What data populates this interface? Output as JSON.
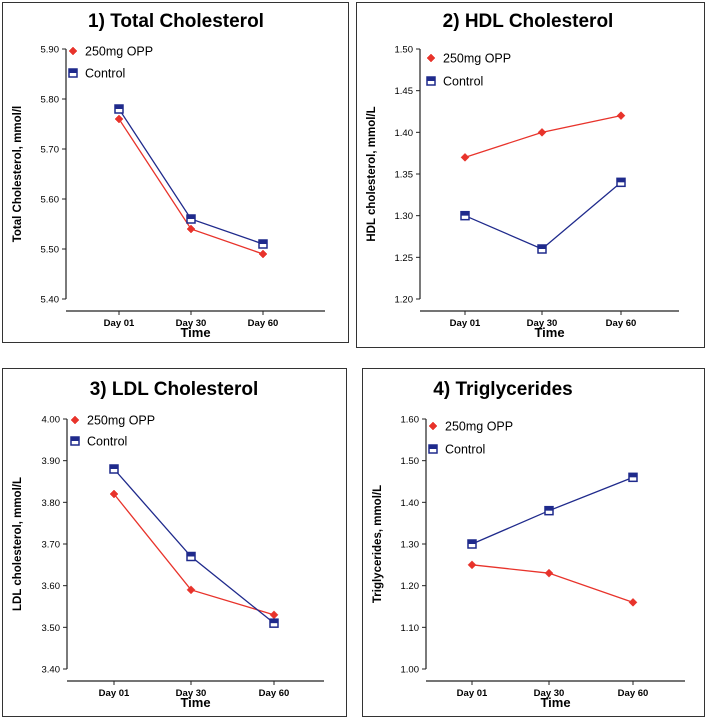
{
  "colors": {
    "opp": "#e8332b",
    "control": "#1f2a8c",
    "axis": "#222222"
  },
  "chart_data": [
    {
      "type": "line",
      "title": "1) Total Cholesterol",
      "xlabel": "Time",
      "ylabel": "Total Cholesterol, mmol/l",
      "categories": [
        "Day 01",
        "Day 30",
        "Day 60"
      ],
      "ylim": [
        5.4,
        5.9
      ],
      "yticks": [
        "5.40",
        "5.50",
        "5.60",
        "5.70",
        "5.80",
        "5.90"
      ],
      "series": [
        {
          "name": "250mg OPP",
          "key": "opp",
          "values": [
            5.76,
            5.54,
            5.49
          ]
        },
        {
          "name": "Control",
          "key": "control",
          "values": [
            5.78,
            5.56,
            5.51
          ]
        }
      ]
    },
    {
      "type": "line",
      "title": "2) HDL Cholesterol",
      "xlabel": "Time",
      "ylabel": "HDL cholesterol, mmol/L",
      "categories": [
        "Day 01",
        "Day 30",
        "Day 60"
      ],
      "ylim": [
        1.2,
        1.5
      ],
      "yticks": [
        "1.20",
        "1.25",
        "1.30",
        "1.35",
        "1.40",
        "1.45",
        "1.50"
      ],
      "series": [
        {
          "name": "250mg OPP",
          "key": "opp",
          "values": [
            1.37,
            1.4,
            1.42
          ]
        },
        {
          "name": "Control",
          "key": "control",
          "values": [
            1.3,
            1.26,
            1.34
          ]
        }
      ]
    },
    {
      "type": "line",
      "title": "3) LDL Cholesterol",
      "xlabel": "Time",
      "ylabel": "LDL cholesterol, mmol/L",
      "categories": [
        "Day 01",
        "Day 30",
        "Day 60"
      ],
      "ylim": [
        3.4,
        4.0
      ],
      "yticks": [
        "3.40",
        "3.50",
        "3.60",
        "3.70",
        "3.80",
        "3.90",
        "4.00"
      ],
      "series": [
        {
          "name": "250mg OPP",
          "key": "opp",
          "values": [
            3.82,
            3.59,
            3.53
          ]
        },
        {
          "name": "Control",
          "key": "control",
          "values": [
            3.88,
            3.67,
            3.51
          ]
        }
      ]
    },
    {
      "type": "line",
      "title": "4) Triglycerides",
      "xlabel": "Time",
      "ylabel": "Triglycerides, mmol/L",
      "categories": [
        "Day 01",
        "Day 30",
        "Day 60"
      ],
      "ylim": [
        1.0,
        1.6
      ],
      "yticks": [
        "1.00",
        "1.10",
        "1.20",
        "1.30",
        "1.40",
        "1.50",
        "1.60"
      ],
      "series": [
        {
          "name": "250mg OPP",
          "key": "opp",
          "values": [
            1.25,
            1.23,
            1.16
          ]
        },
        {
          "name": "Control",
          "key": "control",
          "values": [
            1.3,
            1.38,
            1.46
          ]
        }
      ]
    }
  ]
}
